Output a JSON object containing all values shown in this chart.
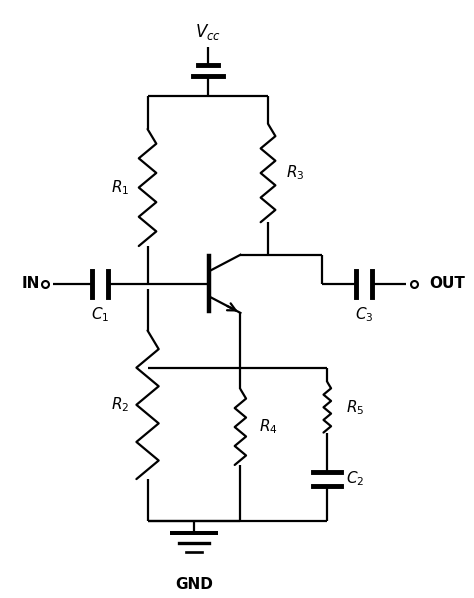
{
  "bg": "#ffffff",
  "lc": "#000000",
  "lw": 1.6,
  "figsize": [
    4.74,
    5.98
  ],
  "dpi": 100,
  "labels": {
    "R1": "$R_1$",
    "R2": "$R_2$",
    "R3": "$R_3$",
    "R4": "$R_4$",
    "R5": "$R_5$",
    "C1": "$C_1$",
    "C2": "$C_2$",
    "C3": "$C_3$",
    "Vcc": "$V_{cc}$",
    "GND": "GND",
    "IN": "IN",
    "OUT": "OUT"
  },
  "fs": 11
}
